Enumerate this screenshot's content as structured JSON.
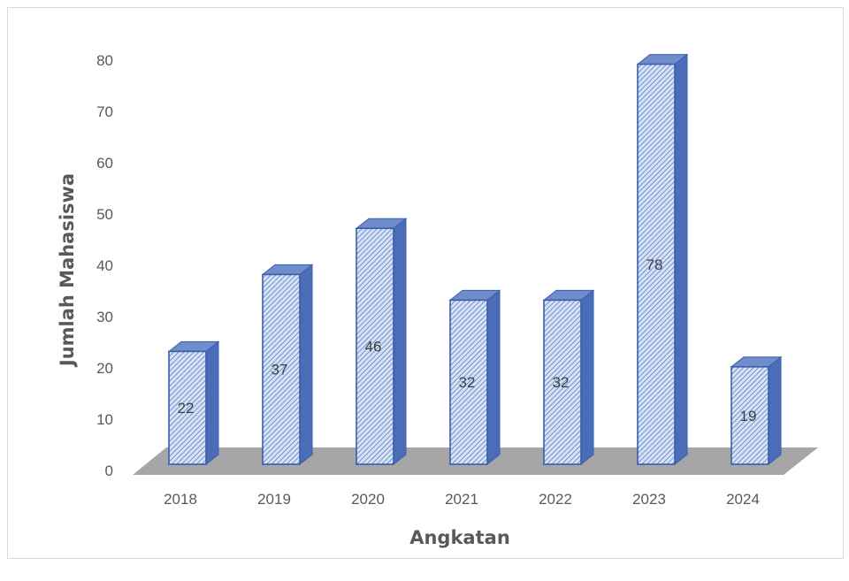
{
  "chart_data": {
    "type": "bar",
    "categories": [
      "2018",
      "2019",
      "2020",
      "2021",
      "2022",
      "2023",
      "2024"
    ],
    "values": [
      22,
      37,
      46,
      32,
      32,
      78,
      19
    ],
    "title": "",
    "xlabel": "Angkatan",
    "ylabel": "Jumlah Mahasiswa",
    "ylim": [
      0,
      80
    ],
    "yticks": [
      "0",
      "10",
      "20",
      "30",
      "40",
      "50",
      "60",
      "70",
      "80"
    ],
    "grid": false,
    "legend": "none",
    "style": "3d-column",
    "colors": {
      "bar_fill": "#d6e2f5",
      "bar_hatch": "#4a6fbf",
      "bar_outline": "#3a5ea8",
      "bar_side": "#4b6db8",
      "bar_top": "#6f8dcc",
      "floor": "#a6a6a6",
      "text": "#595959"
    }
  }
}
